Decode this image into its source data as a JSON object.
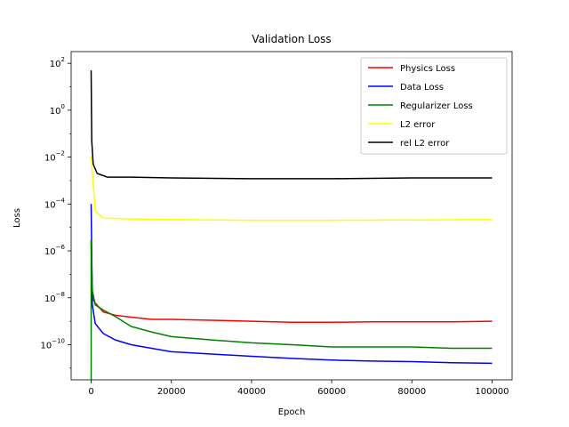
{
  "chart_data": {
    "type": "line",
    "title": "Validation Loss",
    "xlabel": "Epoch",
    "ylabel": "Loss",
    "xlim": [
      -5000,
      105000
    ],
    "ylim_log10": [
      -11.5,
      2.5
    ],
    "yscale": "log",
    "grid": false,
    "legend_position": "top-right",
    "x_ticks": [
      {
        "value": 0,
        "label": "0"
      },
      {
        "value": 20000,
        "label": "20000"
      },
      {
        "value": 40000,
        "label": "40000"
      },
      {
        "value": 60000,
        "label": "60000"
      },
      {
        "value": 80000,
        "label": "80000"
      },
      {
        "value": 100000,
        "label": "100000"
      }
    ],
    "y_ticks": [
      {
        "exp": 2,
        "base": "10",
        "sup": "2"
      },
      {
        "exp": 0,
        "base": "10",
        "sup": "0"
      },
      {
        "exp": -2,
        "base": "10",
        "sup": "−2"
      },
      {
        "exp": -4,
        "base": "10",
        "sup": "−4"
      },
      {
        "exp": -6,
        "base": "10",
        "sup": "−6"
      },
      {
        "exp": -8,
        "base": "10",
        "sup": "−8"
      },
      {
        "exp": -10,
        "base": "10",
        "sup": "−10"
      }
    ],
    "series": [
      {
        "name": "Physics Loss",
        "color": "#ff0000",
        "points": [
          [
            0,
            2e-06
          ],
          [
            300,
            1e-08
          ],
          [
            1000,
            6e-09
          ],
          [
            3000,
            2.5e-09
          ],
          [
            6000,
            1.8e-09
          ],
          [
            10000,
            1.5e-09
          ],
          [
            15000,
            1.2e-09
          ],
          [
            20000,
            1.2e-09
          ],
          [
            30000,
            1.1e-09
          ],
          [
            40000,
            1e-09
          ],
          [
            50000,
            9e-10
          ],
          [
            60000,
            9e-10
          ],
          [
            70000,
            9.5e-10
          ],
          [
            80000,
            9.5e-10
          ],
          [
            90000,
            9.5e-10
          ],
          [
            100000,
            1e-09
          ]
        ]
      },
      {
        "name": "Data Loss",
        "color": "#0000ff",
        "points": [
          [
            0,
            0.0001
          ],
          [
            300,
            5e-09
          ],
          [
            1000,
            8e-10
          ],
          [
            3000,
            3e-10
          ],
          [
            6000,
            1.6e-10
          ],
          [
            10000,
            1e-10
          ],
          [
            15000,
            7e-11
          ],
          [
            20000,
            5e-11
          ],
          [
            30000,
            4e-11
          ],
          [
            40000,
            3.2e-11
          ],
          [
            50000,
            2.6e-11
          ],
          [
            60000,
            2.2e-11
          ],
          [
            70000,
            2e-11
          ],
          [
            80000,
            1.9e-11
          ],
          [
            90000,
            1.7e-11
          ],
          [
            100000,
            1.6e-11
          ]
        ]
      },
      {
        "name": "Regularizer Loss",
        "color": "#008000",
        "points": [
          [
            0,
            3e-06
          ],
          [
            300,
            2e-08
          ],
          [
            1000,
            5e-09
          ],
          [
            3000,
            3e-09
          ],
          [
            6000,
            1.6e-09
          ],
          [
            10000,
            6e-10
          ],
          [
            15000,
            3.5e-10
          ],
          [
            20000,
            2.2e-10
          ],
          [
            30000,
            1.6e-10
          ],
          [
            40000,
            1.2e-10
          ],
          [
            50000,
            1e-10
          ],
          [
            60000,
            8e-11
          ],
          [
            70000,
            8e-11
          ],
          [
            80000,
            8e-11
          ],
          [
            90000,
            7e-11
          ],
          [
            100000,
            7e-11
          ]
        ]
      },
      {
        "name": "L2 error",
        "color": "#ffff00",
        "points": [
          [
            0,
            0.01
          ],
          [
            300,
            0.002
          ],
          [
            1000,
            5e-05
          ],
          [
            3000,
            2.5e-05
          ],
          [
            10000,
            2.3e-05
          ],
          [
            20000,
            2.2e-05
          ],
          [
            40000,
            2e-05
          ],
          [
            60000,
            2e-05
          ],
          [
            80000,
            2.1e-05
          ],
          [
            100000,
            2.2e-05
          ]
        ]
      },
      {
        "name": "rel L2 error",
        "color": "#000000",
        "points": [
          [
            0,
            50
          ],
          [
            150,
            0.05
          ],
          [
            500,
            0.005
          ],
          [
            1500,
            0.002
          ],
          [
            4000,
            0.0014
          ],
          [
            10000,
            0.0014
          ],
          [
            20000,
            0.0013
          ],
          [
            40000,
            0.0012
          ],
          [
            60000,
            0.0012
          ],
          [
            80000,
            0.0013
          ],
          [
            100000,
            0.0013
          ]
        ]
      }
    ]
  }
}
